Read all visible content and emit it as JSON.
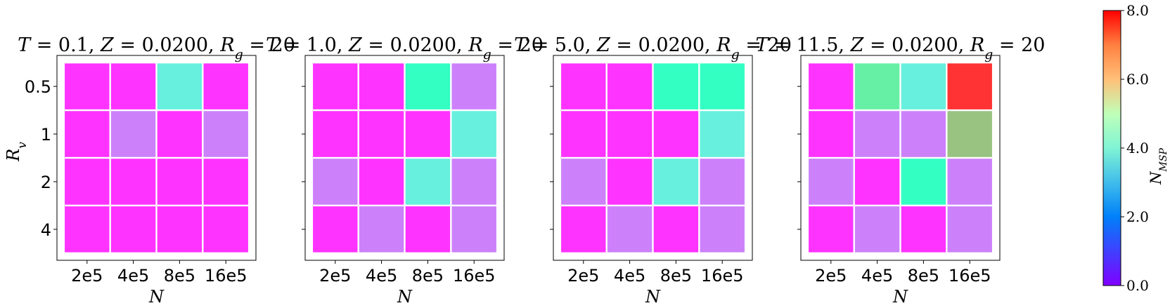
{
  "chart_data": {
    "type": "heatmap",
    "colorbar": {
      "label": "N_MSP",
      "range": [
        0.0,
        8.0
      ],
      "ticks": [
        "0.0",
        "2.0",
        "4.0",
        "6.0",
        "8.0"
      ],
      "colormap": "rainbow"
    },
    "shared_ylabel": "R_v",
    "shared_xlabel": "N",
    "x_categories": [
      "2e5",
      "4e5",
      "8e5",
      "16e5"
    ],
    "y_categories": [
      "0.5",
      "1",
      "2",
      "4"
    ],
    "panels": [
      {
        "title": {
          "T": "0.1",
          "Z": "0.0200",
          "Rg": "20"
        },
        "values": [
          [
            0,
            0,
            3,
            0
          ],
          [
            0,
            1,
            0,
            1
          ],
          [
            0,
            0,
            0,
            0
          ],
          [
            0,
            0,
            0,
            0
          ]
        ]
      },
      {
        "title": {
          "T": "1.0",
          "Z": "0.0200",
          "Rg": "20"
        },
        "values": [
          [
            0,
            0,
            4,
            1
          ],
          [
            0,
            0,
            0,
            3
          ],
          [
            1,
            0,
            3,
            1
          ],
          [
            0,
            1,
            0,
            1
          ]
        ]
      },
      {
        "title": {
          "T": "5.0",
          "Z": "0.0200",
          "Rg": "20"
        },
        "values": [
          [
            0,
            0,
            4,
            4
          ],
          [
            0,
            0,
            0,
            3
          ],
          [
            1,
            0,
            3,
            1
          ],
          [
            0,
            1,
            0,
            1
          ]
        ]
      },
      {
        "title": {
          "T": "11.5",
          "Z": "0.0200",
          "Rg": "20"
        },
        "values": [
          [
            0,
            5,
            3,
            8
          ],
          [
            0,
            1,
            1,
            6
          ],
          [
            1,
            0,
            4,
            1
          ],
          [
            0,
            1,
            0,
            1
          ]
        ]
      }
    ]
  }
}
